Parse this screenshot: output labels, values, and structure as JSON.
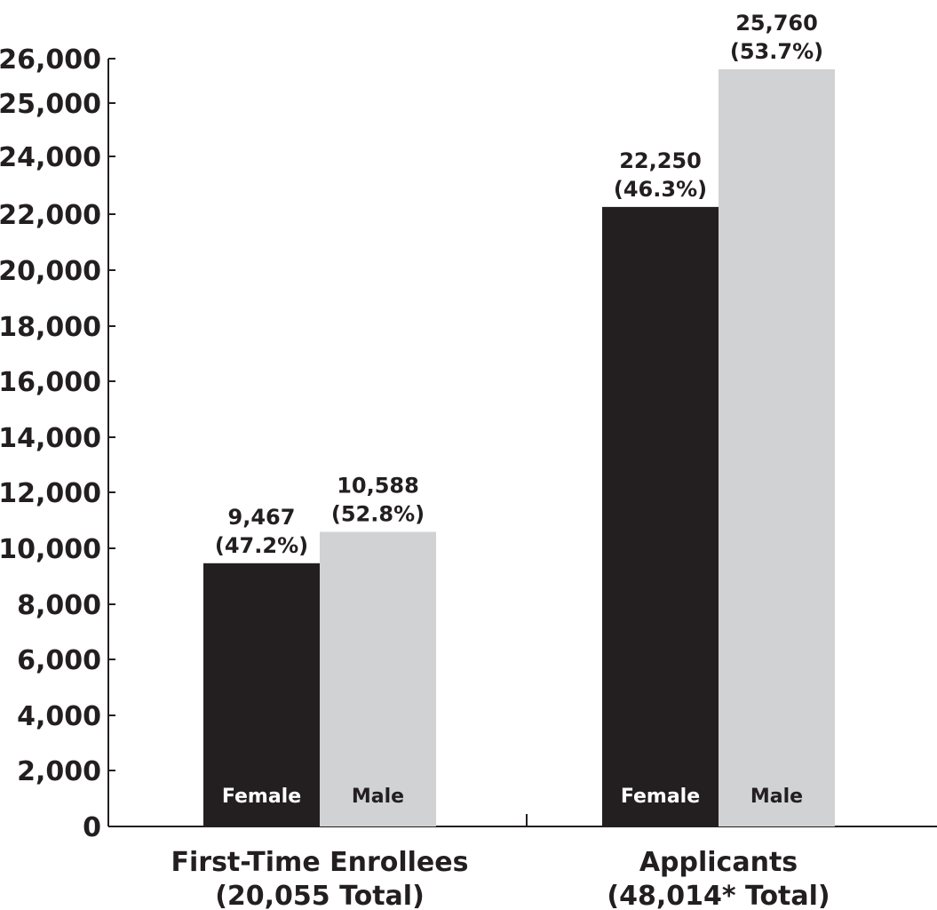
{
  "chart_data": {
    "type": "bar",
    "categories": [
      "First-Time Enrollees",
      "Applicants"
    ],
    "category_labels": [
      [
        "First-Time Enrollees",
        "(20,055 Total)"
      ],
      [
        "Applicants",
        "(48,014* Total)"
      ]
    ],
    "series": [
      {
        "name": "Female",
        "color": "#231f20",
        "label_color": "#ffffff",
        "values": [
          9467,
          22250
        ],
        "value_labels": [
          "9,467",
          "22,250"
        ],
        "percent_labels": [
          "(47.2%)",
          "(46.3%)"
        ]
      },
      {
        "name": "Male",
        "color": "#d1d2d4",
        "label_color": "#231f20",
        "values": [
          10588,
          25760
        ],
        "value_labels": [
          "10,588",
          "25,760"
        ],
        "percent_labels": [
          "(52.8%)",
          "(53.7%)"
        ]
      }
    ],
    "y_ticks": [
      0,
      2000,
      4000,
      6000,
      8000,
      10000,
      12000,
      14000,
      16000,
      18000,
      20000,
      22000,
      24000,
      25000,
      26000
    ],
    "y_tick_labels": [
      "0",
      "2,000",
      "4,000",
      "6,000",
      "8,000",
      "10,000",
      "12,000",
      "14,000",
      "16,000",
      "18,000",
      "20,000",
      "22,000",
      "24,000",
      "25,000",
      "26,000"
    ],
    "ylim": [
      0,
      26000
    ],
    "grid": false,
    "legend": "none"
  }
}
